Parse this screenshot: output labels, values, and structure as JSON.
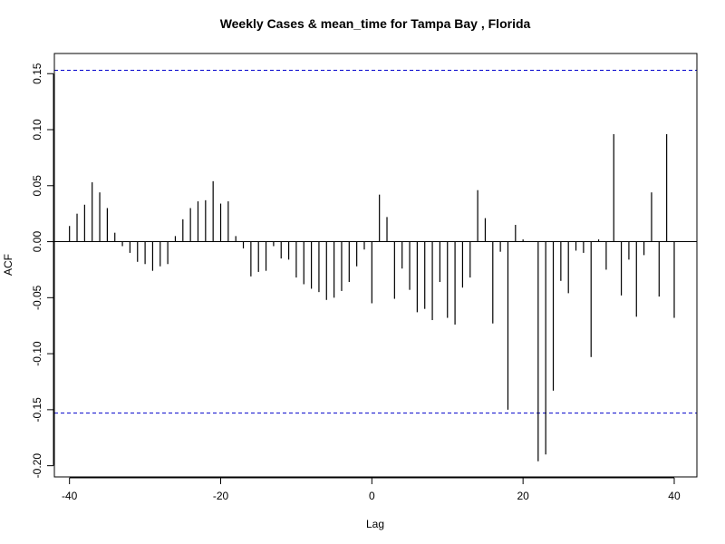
{
  "chart_data": {
    "type": "bar",
    "title": "Weekly Cases & mean_time for Tampa Bay , Florida",
    "xlabel": "Lag",
    "ylabel": "ACF",
    "xlim": [
      -42,
      43
    ],
    "ylim": [
      -0.21,
      0.168
    ],
    "xticks": [
      -40,
      -20,
      0,
      20,
      40
    ],
    "yticks": [
      -0.2,
      -0.15,
      -0.1,
      -0.05,
      0.0,
      0.05,
      0.1,
      0.15
    ],
    "ytick_labels": [
      "-0.20",
      "-0.15",
      "-0.10",
      "-0.05",
      "0.00",
      "0.05",
      "0.10",
      "0.15"
    ],
    "confidence_bound": 0.153,
    "colors": {
      "bars": "#000000",
      "ci": "#0000cc",
      "axis": "#000000"
    },
    "lags": [
      -40,
      -39,
      -38,
      -37,
      -36,
      -35,
      -34,
      -33,
      -32,
      -31,
      -30,
      -29,
      -28,
      -27,
      -26,
      -25,
      -24,
      -23,
      -22,
      -21,
      -20,
      -19,
      -18,
      -17,
      -16,
      -15,
      -14,
      -13,
      -12,
      -11,
      -10,
      -9,
      -8,
      -7,
      -6,
      -5,
      -4,
      -3,
      -2,
      -1,
      0,
      1,
      2,
      3,
      4,
      5,
      6,
      7,
      8,
      9,
      10,
      11,
      12,
      13,
      14,
      15,
      16,
      17,
      18,
      19,
      20,
      21,
      22,
      23,
      24,
      25,
      26,
      27,
      28,
      29,
      30,
      31,
      32,
      33,
      34,
      35,
      36,
      37,
      38,
      39,
      40
    ],
    "values": [
      0.014,
      0.025,
      0.033,
      0.053,
      0.044,
      0.03,
      0.008,
      -0.004,
      -0.01,
      -0.018,
      -0.02,
      -0.026,
      -0.022,
      -0.02,
      0.005,
      0.02,
      0.03,
      0.036,
      0.037,
      0.054,
      0.034,
      0.036,
      0.005,
      -0.006,
      -0.031,
      -0.027,
      -0.026,
      -0.004,
      -0.015,
      -0.016,
      -0.032,
      -0.038,
      -0.042,
      -0.045,
      -0.052,
      -0.05,
      -0.044,
      -0.036,
      -0.022,
      -0.007,
      -0.055,
      0.042,
      0.022,
      -0.051,
      -0.024,
      -0.043,
      -0.063,
      -0.06,
      -0.07,
      -0.036,
      -0.068,
      -0.074,
      -0.041,
      -0.032,
      0.046,
      0.021,
      -0.073,
      -0.009,
      -0.15,
      0.015,
      0.002,
      0.0,
      -0.196,
      -0.19,
      -0.133,
      -0.035,
      -0.046,
      -0.008,
      -0.01,
      -0.103,
      0.002,
      -0.025,
      0.096,
      -0.048,
      -0.016,
      -0.067,
      -0.012,
      0.044,
      -0.049,
      0.096,
      -0.068
    ]
  }
}
